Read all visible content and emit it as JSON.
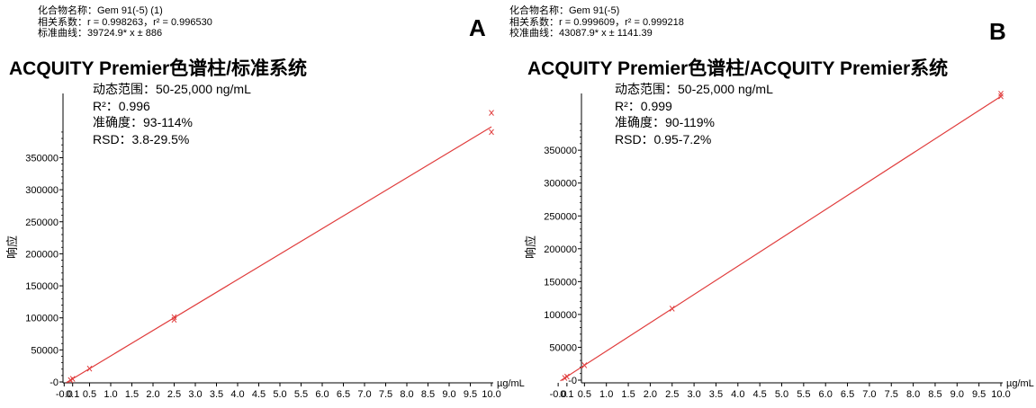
{
  "chart_data": [
    {
      "type": "scatter",
      "panel_label": "A",
      "compound_line": "化合物名称：Gem 91(-5) (1)",
      "correlation_line": "相关系数：r = 0.998263，r² = 0.996530",
      "curve_line": "标准曲线：39724.9* x ± 886",
      "title": "ACQUITY Premier色谱柱/标准系统",
      "stats": [
        "动态范围：50-25,000 ng/mL",
        "R²：0.996",
        "准确度：93-114%",
        "RSD：3.8-29.5%"
      ],
      "xlabel": "µg/mL",
      "ylabel": "响应",
      "x_ticks": [
        "-0.0",
        "0.1",
        "0.5",
        "1.0",
        "1.5",
        "2.0",
        "2.5",
        "3.0",
        "3.5",
        "4.0",
        "4.5",
        "5.0",
        "5.5",
        "6.0",
        "6.5",
        "7.0",
        "7.5",
        "8.0",
        "8.5",
        "9.0",
        "9.5",
        "10.0"
      ],
      "y_ticks": [
        "-0",
        "50000",
        "100000",
        "150000",
        "200000",
        "250000",
        "300000",
        "350000"
      ],
      "xlim": [
        -0.1,
        10.0
      ],
      "ylim": [
        -5000,
        400000
      ],
      "fit": {
        "slope": 39724.9,
        "intercept": 886
      },
      "points": [
        {
          "x": 0.05,
          "y": 2800
        },
        {
          "x": 0.1,
          "y": 4800
        },
        {
          "x": 0.5,
          "y": 20800
        },
        {
          "x": 2.5,
          "y": 97000
        },
        {
          "x": 2.5,
          "y": 101000
        },
        {
          "x": 10.0,
          "y": 420000
        },
        {
          "x": 10.0,
          "y": 390000
        }
      ],
      "series_color": "#e03c3c"
    },
    {
      "type": "scatter",
      "panel_label": "B",
      "compound_line": "化合物名称：Gem 91(-5)",
      "correlation_line": "相关系数：r = 0.999609，r² = 0.999218",
      "curve_line": "校准曲线：43087.9* x ± 1141.39",
      "title": "ACQUITY Premier色谱柱/ACQUITY Premier系统",
      "stats": [
        "动态范围：50-25,000 ng/mL",
        "R²：0.999",
        "准确度：90-119%",
        "RSD：0.95-7.2%"
      ],
      "xlabel": "µg/mL",
      "ylabel": "响应",
      "x_ticks": [
        "-0.0",
        "0.1",
        "0.5",
        "1.0",
        "1.5",
        "2.0",
        "2.5",
        "3.0",
        "3.5",
        "4.0",
        "4.5",
        "5.0",
        "5.5",
        "6.0",
        "6.5",
        "7.0",
        "7.5",
        "8.0",
        "8.5",
        "9.0",
        "9.5",
        "10.0"
      ],
      "y_ticks": [
        "-0",
        "50000",
        "100000",
        "150000",
        "200000",
        "250000",
        "300000",
        "350000"
      ],
      "xlim": [
        -0.1,
        10.0
      ],
      "ylim": [
        -5000,
        430000
      ],
      "fit": {
        "slope": 43087.9,
        "intercept": 1141.39
      },
      "points": [
        {
          "x": 0.05,
          "y": 3300
        },
        {
          "x": 0.1,
          "y": 5400
        },
        {
          "x": 0.5,
          "y": 22700
        },
        {
          "x": 2.5,
          "y": 108900
        },
        {
          "x": 10.0,
          "y": 432000
        },
        {
          "x": 10.0,
          "y": 436000
        }
      ],
      "series_color": "#e03c3c"
    }
  ]
}
